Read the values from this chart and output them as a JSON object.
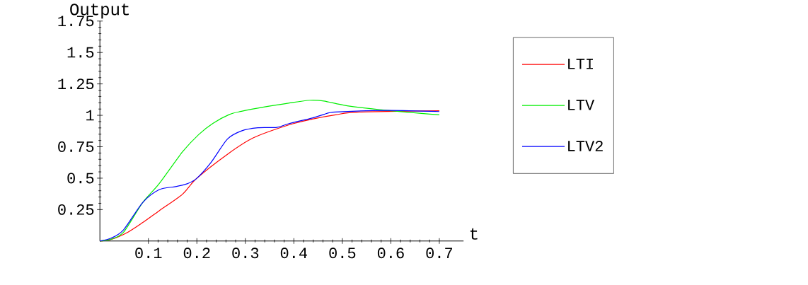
{
  "chart_data": {
    "type": "line",
    "xlabel": "t",
    "ylabel": "Output",
    "xlim": [
      0,
      0.75
    ],
    "ylim": [
      0,
      1.75
    ],
    "xticks": [
      0.1,
      0.2,
      0.3,
      0.4,
      0.5,
      0.6,
      0.7
    ],
    "yticks": [
      0.25,
      0.5,
      0.75,
      1,
      1.25,
      1.5,
      1.75
    ],
    "legend": "right",
    "grid": false,
    "series": [
      {
        "name": "LTI",
        "color": "#ff0000",
        "x": [
          0,
          0.025,
          0.058,
          0.088,
          0.122,
          0.17,
          0.199,
          0.263,
          0.316,
          0.389,
          0.438,
          0.486,
          0.535,
          0.593,
          0.7
        ],
        "values": [
          0,
          0.015,
          0.071,
          0.146,
          0.24,
          0.371,
          0.496,
          0.69,
          0.82,
          0.923,
          0.97,
          1.004,
          1.026,
          null,
          1.036
        ]
      },
      {
        "name": "LTV",
        "color": "#00ee00",
        "x": [
          0,
          0.024,
          0.049,
          0.088,
          0.122,
          0.17,
          0.204,
          0.233,
          0.267,
          0.292,
          0.34,
          0.389,
          0.433,
          0.462,
          0.51,
          0.593,
          0.7
        ],
        "values": [
          0,
          0.015,
          0.071,
          0.305,
          0.455,
          0.708,
          0.848,
          0.936,
          1.007,
          1.032,
          1.067,
          1.097,
          1.12,
          1.114,
          1.076,
          1.039,
          1.004
        ]
      },
      {
        "name": "LTV2",
        "color": "#0000ff",
        "x": [
          0,
          0.024,
          0.049,
          0.088,
          0.122,
          0.156,
          0.18,
          0.199,
          0.229,
          0.263,
          0.292,
          0.326,
          0.365,
          0.389,
          0.438,
          0.462,
          0.486,
          0.593,
          0.7
        ],
        "values": [
          0,
          0.024,
          0.09,
          0.305,
          0.408,
          0.433,
          0.455,
          0.496,
          0.624,
          0.811,
          0.876,
          0.901,
          0.904,
          0.933,
          0.979,
          1.007,
          1.026,
          1.039,
          1.03
        ]
      }
    ]
  }
}
